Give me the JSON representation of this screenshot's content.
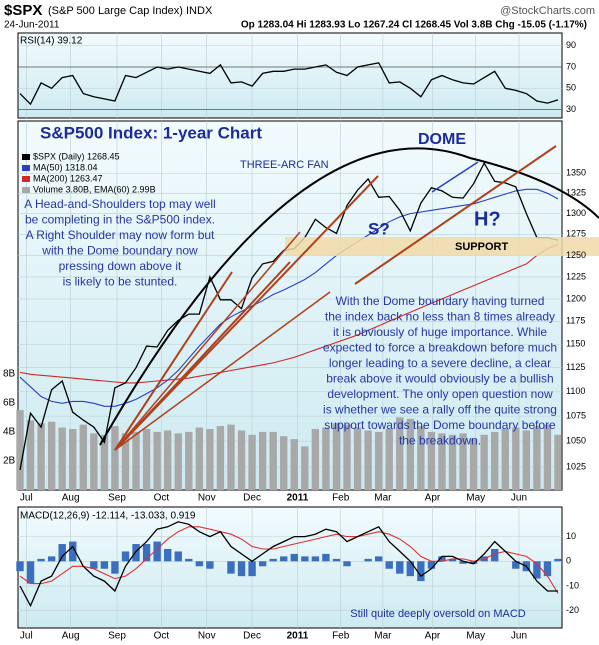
{
  "header": {
    "symbol": "$SPX",
    "name": "(S&P 500 Large Cap Index) INDX",
    "source": "@StockCharts.com",
    "date": "24-Jun-2011",
    "quote": "Op 1283.04 Hi 1283.93 Lo 1267.24 Cl 1268.45 Vol 3.8B Chg -15.05 (-1.17%)"
  },
  "chart_data": [
    {
      "type": "line",
      "title": "RSI(14) 39.12",
      "xlim": [
        0,
        51
      ],
      "ylim": [
        22,
        102
      ],
      "yticks": [
        30,
        50,
        70,
        90
      ],
      "hlines": [
        30,
        70
      ],
      "series": [
        {
          "color": "#000000",
          "values": [
            45,
            35,
            55,
            50,
            60,
            62,
            45,
            42,
            40,
            38,
            62,
            60,
            65,
            70,
            68,
            70,
            68,
            66,
            64,
            72,
            55,
            56,
            52,
            64,
            66,
            66,
            68,
            68,
            70,
            72,
            65,
            62,
            70,
            72,
            74,
            55,
            56,
            50,
            42,
            58,
            62,
            58,
            55,
            54,
            60,
            66,
            50,
            48,
            45,
            38,
            36,
            39
          ]
        }
      ]
    },
    {
      "type": "line",
      "title": "S&P500 Index: 1-year Chart",
      "log_scale": true,
      "xlim": [
        0,
        51
      ],
      "xticks": [
        {
          "value": 0.6,
          "label": "Jul"
        },
        {
          "value": 4.8,
          "label": "Aug"
        },
        {
          "value": 9.2,
          "label": "Sep"
        },
        {
          "value": 13.4,
          "label": "Oct"
        },
        {
          "value": 17.7,
          "label": "Nov"
        },
        {
          "value": 22,
          "label": "Dec"
        },
        {
          "value": 26.3,
          "label": "2011"
        },
        {
          "value": 30.4,
          "label": "Feb"
        },
        {
          "value": 34.4,
          "label": "Mar"
        },
        {
          "value": 39.1,
          "label": "Apr"
        },
        {
          "value": 43.2,
          "label": "May"
        },
        {
          "value": 47.3,
          "label": "Jun"
        }
      ],
      "ylim": [
        1003,
        1418
      ],
      "yticks": [
        1025,
        1050,
        1075,
        1100,
        1125,
        1150,
        1175,
        1200,
        1225,
        1250,
        1275,
        1300,
        1325,
        1350
      ],
      "y2lim": [
        0,
        25.4
      ],
      "y2ticks": [
        {
          "value": 2,
          "label": "2B"
        },
        {
          "value": 4,
          "label": "4B"
        },
        {
          "value": 6,
          "label": "6B"
        },
        {
          "value": 8,
          "label": "8B"
        }
      ],
      "annotations": {
        "fan": "THREE-ARC FAN",
        "dome": "DOME",
        "shoulder": "S?",
        "head": "H?",
        "support": "SUPPORT",
        "left_note": [
          "A Head-and-Shoulders top may well",
          "be completing in the S&P500 index.",
          "A Right Shoulder may now form but",
          "with the Dome boundary now",
          "pressing down above it",
          "is likely to be stunted."
        ],
        "right_note": [
          "With the Dome boundary having turned",
          "the index back no less than 8 times already",
          "it is obviously of huge importance. While",
          "expected to force a breakdown before much",
          "longer leading to a severe decline, a clear",
          "break above it would obviously be a bullish",
          "development. The only open question now",
          "is whether we see a rally off the quite strong",
          "support towards the Dome boundary before",
          "the breakdown."
        ]
      },
      "series": [
        {
          "name": "Volume 3.80B, EMA(60) 2.99B",
          "type": "bar",
          "axis": "y2",
          "color": "#a8a8a8",
          "values": [
            5.5,
            4.8,
            4.6,
            4.7,
            4.3,
            4.2,
            4.5,
            3.9,
            3.8,
            4.4,
            3.9,
            4.0,
            4.2,
            4.0,
            4.1,
            3.9,
            4.0,
            4.3,
            4.2,
            4.4,
            4.5,
            4.1,
            3.8,
            4.0,
            4.0,
            3.7,
            3.5,
            3.0,
            4.2,
            4.3,
            4.6,
            4.5,
            4.3,
            4.1,
            4.0,
            4.2,
            5.0,
            4.9,
            4.4,
            4.0,
            3.9,
            3.8,
            3.9,
            3.5,
            3.8,
            4.0,
            4.2,
            4.3,
            4.1,
            4.4,
            4.5,
            3.8
          ]
        },
        {
          "name": "MA(200) 1263.47",
          "color": "#d02828",
          "values": [
            1120,
            1118,
            1117,
            1116,
            1115,
            1114,
            1113,
            1112,
            1111,
            1110,
            1109,
            1109,
            1110,
            1111,
            1112,
            1113,
            1114,
            1116,
            1118,
            1120,
            1122,
            1124,
            1126,
            1128,
            1130,
            1133,
            1136,
            1140,
            1144,
            1148,
            1152,
            1156,
            1160,
            1165,
            1170,
            1175,
            1180,
            1185,
            1190,
            1195,
            1200,
            1205,
            1210,
            1215,
            1220,
            1225,
            1230,
            1235,
            1240,
            1250,
            1258,
            1263
          ]
        },
        {
          "name": "MA(50) 1318.04",
          "color": "#2a40c0",
          "values": [
            1115,
            1105,
            1095,
            1090,
            1088,
            1090,
            1090,
            1088,
            1085,
            1085,
            1088,
            1092,
            1098,
            1104,
            1112,
            1122,
            1135,
            1148,
            1160,
            1172,
            1180,
            1186,
            1192,
            1198,
            1205,
            1210,
            1216,
            1222,
            1230,
            1240,
            1250,
            1258,
            1266,
            1274,
            1282,
            1290,
            1296,
            1300,
            1302,
            1304,
            1306,
            1308,
            1310,
            1312,
            1316,
            1320,
            1324,
            1328,
            1330,
            1330,
            1325,
            1318
          ]
        },
        {
          "name": "$SPX (Daily) 1268.45",
          "color": "#000000",
          "values": [
            1022,
            1078,
            1064,
            1102,
            1111,
            1079,
            1071,
            1064,
            1049,
            1104,
            1109,
            1125,
            1148,
            1147,
            1165,
            1176,
            1183,
            1183,
            1225,
            1199,
            1199,
            1189,
            1224,
            1240,
            1243,
            1256,
            1258,
            1271,
            1293,
            1283,
            1276,
            1310,
            1329,
            1343,
            1320,
            1321,
            1304,
            1279,
            1313,
            1332,
            1328,
            1320,
            1319,
            1337,
            1363,
            1340,
            1338,
            1333,
            1300,
            1271,
            1271,
            1268
          ]
        }
      ]
    },
    {
      "type": "line",
      "title": "MACD(12,26,9) -12.114, -13.033, 0.919",
      "note": "Still quite deeply oversold on MACD",
      "xlim": [
        0,
        51
      ],
      "xticks": [
        {
          "value": 0.6,
          "label": "Jul"
        },
        {
          "value": 4.8,
          "label": "Aug"
        },
        {
          "value": 9.2,
          "label": "Sep"
        },
        {
          "value": 13.4,
          "label": "Oct"
        },
        {
          "value": 17.7,
          "label": "Nov"
        },
        {
          "value": 22,
          "label": "Dec"
        },
        {
          "value": 26.3,
          "label": "2011"
        },
        {
          "value": 30.4,
          "label": "Feb"
        },
        {
          "value": 34.4,
          "label": "Mar"
        },
        {
          "value": 39.1,
          "label": "Apr"
        },
        {
          "value": 43.2,
          "label": "May"
        },
        {
          "value": 47.3,
          "label": "Jun"
        }
      ],
      "ylim": [
        -27,
        22
      ],
      "yticks": [
        -20,
        -10,
        0,
        10
      ],
      "series": [
        {
          "type": "bar",
          "color": "#3a6fc0",
          "values": [
            -4,
            -9,
            1,
            2,
            7,
            8,
            0,
            -3,
            -3,
            -5,
            4,
            7,
            7,
            8,
            5,
            4,
            1,
            -2,
            -3,
            0,
            -5,
            -6,
            -6,
            -2,
            1,
            2,
            3,
            2,
            2,
            3,
            1,
            -2,
            0,
            1,
            2,
            -3,
            -5,
            -6,
            -8,
            -3,
            2,
            1,
            -1,
            -1,
            2,
            5,
            0,
            -3,
            -4,
            -7,
            -6,
            1
          ]
        },
        {
          "color": "#e03030",
          "values": [
            -6,
            -9,
            -9,
            -8,
            -5,
            -2,
            -2,
            -3,
            -5,
            -7,
            -6,
            -3,
            1,
            5,
            9,
            12,
            14,
            14,
            13,
            12,
            11,
            9,
            6,
            5,
            5,
            6,
            7,
            8,
            9,
            10,
            11,
            10,
            10,
            11,
            12,
            11,
            9,
            6,
            2,
            0,
            0,
            1,
            1,
            0,
            1,
            3,
            4,
            3,
            2,
            -1,
            -6,
            -13
          ]
        },
        {
          "color": "#000000",
          "values": [
            -10,
            -18,
            -8,
            -6,
            2,
            6,
            -2,
            -6,
            -8,
            -12,
            -2,
            4,
            8,
            13,
            14,
            16,
            15,
            12,
            10,
            12,
            6,
            3,
            0,
            3,
            6,
            8,
            10,
            10,
            11,
            13,
            12,
            8,
            10,
            12,
            14,
            8,
            4,
            0,
            -6,
            -3,
            2,
            2,
            0,
            -1,
            3,
            8,
            4,
            0,
            -2,
            -8,
            -12,
            -12
          ]
        }
      ]
    }
  ]
}
